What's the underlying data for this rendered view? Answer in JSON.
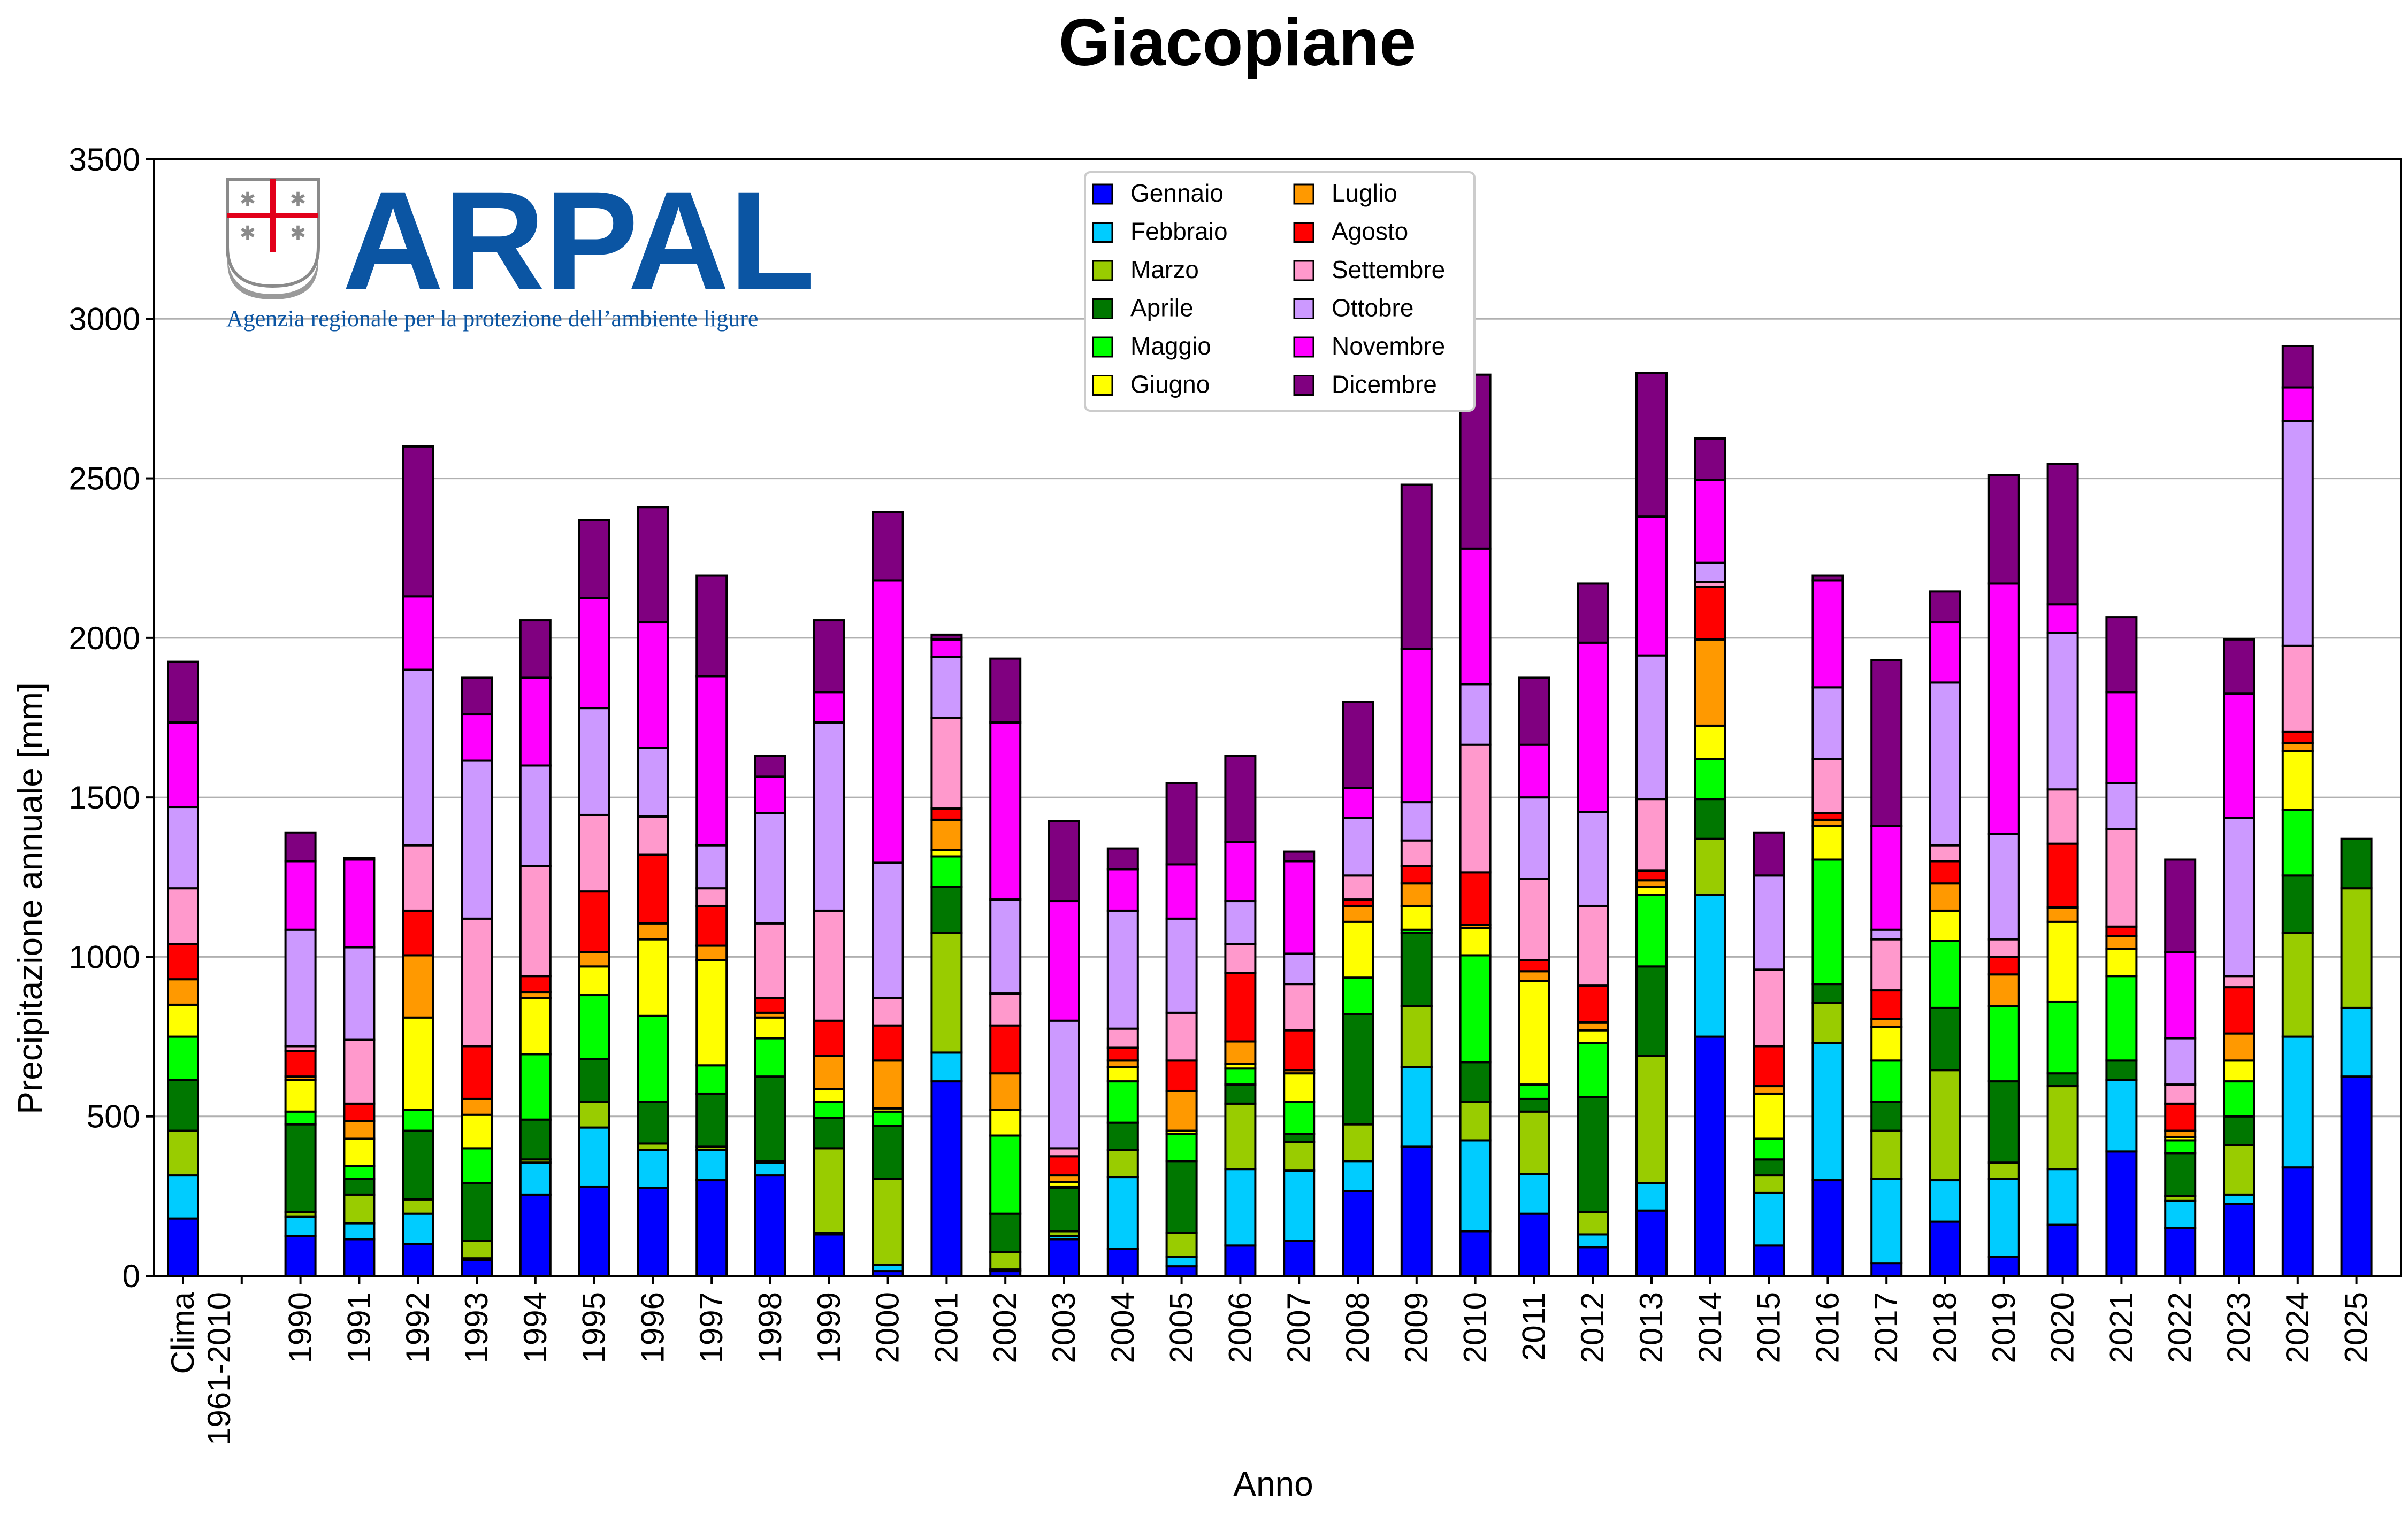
{
  "chart_data": {
    "type": "bar",
    "stacked": true,
    "title": "Giacopiane",
    "xlabel": "Anno",
    "ylabel": "Precipitazione annuale [mm]",
    "ylim": [
      0,
      3500
    ],
    "yticks": [
      0,
      500,
      1000,
      1500,
      2000,
      2500,
      3000,
      3500
    ],
    "grid": "horizontal",
    "legend_position": "top-center",
    "logo": {
      "word": "ARPAL",
      "subtitle": "Agenzia regionale per la protezione dell’ambiente ligure",
      "color": "#0b55a3"
    },
    "categories": [
      [
        "Clima",
        "1961-2010"
      ],
      [
        ""
      ],
      [
        "1990"
      ],
      [
        "1991"
      ],
      [
        "1992"
      ],
      [
        "1993"
      ],
      [
        "1994"
      ],
      [
        "1995"
      ],
      [
        "1996"
      ],
      [
        "1997"
      ],
      [
        "1998"
      ],
      [
        "1999"
      ],
      [
        "2000"
      ],
      [
        "2001"
      ],
      [
        "2002"
      ],
      [
        "2003"
      ],
      [
        "2004"
      ],
      [
        "2005"
      ],
      [
        "2006"
      ],
      [
        "2007"
      ],
      [
        "2008"
      ],
      [
        "2009"
      ],
      [
        "2010"
      ],
      [
        "2011"
      ],
      [
        "2012"
      ],
      [
        "2013"
      ],
      [
        "2014"
      ],
      [
        "2015"
      ],
      [
        "2016"
      ],
      [
        "2017"
      ],
      [
        "2018"
      ],
      [
        "2019"
      ],
      [
        "2020"
      ],
      [
        "2021"
      ],
      [
        "2022"
      ],
      [
        "2023"
      ],
      [
        "2024"
      ],
      [
        "2025"
      ]
    ],
    "series": [
      {
        "name": "Gennaio",
        "color": "#0000ff",
        "values": [
          180,
          0,
          125,
          115,
          100,
          50,
          255,
          280,
          275,
          300,
          315,
          130,
          15,
          610,
          15,
          115,
          85,
          30,
          95,
          110,
          265,
          405,
          140,
          195,
          90,
          205,
          750,
          95,
          300,
          40,
          170,
          60,
          160,
          390,
          150,
          225,
          340,
          625
        ]
      },
      {
        "name": "Febbraio",
        "color": "#00ccff",
        "values": [
          135,
          0,
          60,
          50,
          95,
          5,
          100,
          185,
          120,
          95,
          40,
          5,
          20,
          90,
          5,
          10,
          225,
          30,
          240,
          220,
          95,
          250,
          285,
          125,
          40,
          85,
          445,
          165,
          430,
          265,
          130,
          245,
          175,
          225,
          85,
          30,
          410,
          215
        ]
      },
      {
        "name": "Marzo",
        "color": "#99cc00",
        "values": [
          140,
          0,
          15,
          90,
          45,
          55,
          10,
          80,
          20,
          10,
          5,
          265,
          270,
          375,
          55,
          15,
          85,
          75,
          205,
          90,
          115,
          190,
          120,
          195,
          70,
          400,
          175,
          55,
          125,
          150,
          345,
          50,
          260,
          0,
          15,
          155,
          325,
          375
        ]
      },
      {
        "name": "Aprile",
        "color": "#007700",
        "values": [
          160,
          0,
          275,
          50,
          215,
          180,
          125,
          135,
          130,
          165,
          265,
          95,
          165,
          145,
          120,
          135,
          85,
          225,
          60,
          25,
          345,
          230,
          125,
          40,
          360,
          280,
          125,
          50,
          60,
          90,
          195,
          255,
          40,
          60,
          135,
          90,
          180,
          155
        ]
      },
      {
        "name": "Maggio",
        "color": "#00ff00",
        "values": [
          135,
          0,
          40,
          40,
          65,
          110,
          205,
          200,
          270,
          90,
          120,
          50,
          45,
          95,
          245,
          5,
          130,
          85,
          50,
          100,
          115,
          10,
          335,
          45,
          170,
          225,
          125,
          65,
          390,
          130,
          210,
          235,
          225,
          265,
          40,
          110,
          205,
          0
        ]
      },
      {
        "name": "Giugno",
        "color": "#ffff00",
        "values": [
          100,
          0,
          100,
          85,
          290,
          105,
          175,
          90,
          240,
          330,
          65,
          40,
          10,
          20,
          80,
          15,
          45,
          10,
          15,
          90,
          175,
          75,
          85,
          325,
          40,
          25,
          105,
          140,
          105,
          105,
          95,
          0,
          250,
          85,
          10,
          65,
          185,
          0
        ]
      },
      {
        "name": "Luglio",
        "color": "#ff9900",
        "values": [
          80,
          0,
          10,
          55,
          195,
          50,
          20,
          45,
          50,
          45,
          15,
          105,
          150,
          95,
          115,
          20,
          20,
          125,
          70,
          10,
          50,
          70,
          10,
          30,
          25,
          20,
          270,
          25,
          20,
          25,
          85,
          100,
          45,
          40,
          20,
          85,
          25,
          0
        ]
      },
      {
        "name": "Agosto",
        "color": "#ff0000",
        "values": [
          110,
          0,
          80,
          55,
          140,
          165,
          50,
          190,
          215,
          125,
          45,
          110,
          110,
          35,
          150,
          60,
          40,
          95,
          215,
          125,
          20,
          55,
          165,
          35,
          115,
          30,
          165,
          125,
          20,
          90,
          70,
          55,
          200,
          30,
          85,
          145,
          35,
          0
        ]
      },
      {
        "name": "Settembre",
        "color": "#ff99cc",
        "values": [
          175,
          0,
          15,
          200,
          205,
          400,
          345,
          240,
          120,
          55,
          235,
          345,
          85,
          285,
          100,
          25,
          60,
          150,
          90,
          145,
          75,
          80,
          400,
          255,
          250,
          225,
          15,
          240,
          170,
          160,
          50,
          55,
          170,
          305,
          60,
          35,
          270,
          0
        ]
      },
      {
        "name": "Ottobre",
        "color": "#cc99ff",
        "values": [
          255,
          0,
          365,
          290,
          550,
          495,
          315,
          335,
          215,
          135,
          345,
          590,
          425,
          190,
          295,
          400,
          370,
          295,
          135,
          95,
          180,
          120,
          190,
          255,
          295,
          450,
          60,
          295,
          225,
          30,
          510,
          330,
          490,
          145,
          145,
          495,
          705,
          0
        ]
      },
      {
        "name": "Novembre",
        "color": "#ff00ff",
        "values": [
          265,
          0,
          215,
          275,
          230,
          145,
          275,
          345,
          395,
          530,
          115,
          95,
          885,
          55,
          555,
          375,
          130,
          170,
          185,
          290,
          95,
          480,
          425,
          165,
          530,
          435,
          260,
          0,
          335,
          325,
          190,
          785,
          90,
          285,
          270,
          390,
          105,
          0
        ]
      },
      {
        "name": "Dicembre",
        "color": "#800080",
        "values": [
          190,
          0,
          90,
          5,
          470,
          115,
          180,
          245,
          360,
          315,
          65,
          225,
          215,
          15,
          200,
          250,
          65,
          255,
          270,
          30,
          270,
          515,
          545,
          210,
          185,
          450,
          130,
          135,
          15,
          520,
          95,
          340,
          440,
          235,
          290,
          170,
          130,
          0
        ]
      }
    ]
  }
}
